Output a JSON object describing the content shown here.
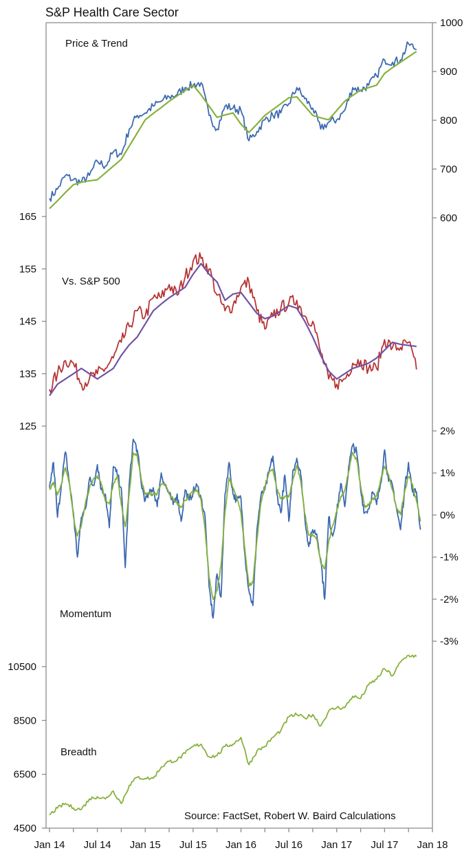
{
  "title": "S&P Health Care Sector",
  "source": "Source: FactSet, Robert W. Baird Calculations",
  "x_axis": {
    "ticks": [
      "Jan 14",
      "Jul 14",
      "Jan 15",
      "Jul 15",
      "Jan 16",
      "Jul 16",
      "Jan 17",
      "Jul 17",
      "Jan 18"
    ]
  },
  "chart_data": [
    {
      "type": "line",
      "label": "Price & Trend",
      "y_axis_side": "right",
      "ylim": [
        600,
        1000
      ],
      "yticks": [
        "1000",
        "900",
        "800",
        "700",
        "600"
      ],
      "ytick_values": [
        1000,
        900,
        800,
        700,
        600
      ],
      "x_start": "2014-01",
      "x_step": "1 month",
      "series": [
        {
          "color": "#3b69b1",
          "values": [
            640,
            659,
            687,
            678,
            673,
            687,
            716,
            706,
            735,
            730,
            782,
            810,
            815,
            829,
            839,
            848,
            853,
            867,
            872,
            877,
            810,
            782,
            829,
            825,
            820,
            758,
            777,
            801,
            810,
            815,
            834,
            867,
            844,
            825,
            782,
            796,
            801,
            820,
            867,
            862,
            872,
            891,
            924,
            919,
            924,
            957,
            945
          ]
        },
        {
          "color": "#87b13c",
          "values": [
            619,
            635,
            652,
            668,
            673,
            676,
            678,
            692,
            706,
            720,
            747,
            774,
            801,
            814,
            826,
            839,
            850,
            861,
            872,
            852,
            829,
            806,
            811,
            815,
            792,
            775,
            792,
            810,
            822,
            834,
            846,
            848,
            829,
            810,
            805,
            801,
            820,
            839,
            851,
            862,
            867,
            872,
            896,
            908,
            919,
            930,
            941
          ]
        }
      ]
    },
    {
      "type": "line",
      "label": "Vs. S&P 500",
      "y_axis_side": "left",
      "ylim": [
        125,
        165
      ],
      "yticks": [
        "165",
        "155",
        "145",
        "135",
        "125"
      ],
      "ytick_values": [
        165,
        155,
        145,
        135,
        125
      ],
      "x_start": "2014-01",
      "x_step": "1 month",
      "series": [
        {
          "color": "#b73333",
          "values": [
            132,
            135,
            137.5,
            137,
            133,
            134,
            135,
            136,
            138,
            141,
            144,
            147,
            146,
            149.5,
            149.5,
            152,
            150,
            153.5,
            156.5,
            157,
            155,
            150,
            147,
            148,
            151.5,
            152.5,
            147,
            143.5,
            146,
            147.5,
            148.5,
            149,
            146,
            145,
            139,
            134,
            133,
            134,
            137,
            137.5,
            136,
            136,
            141.5,
            140,
            140,
            141,
            135.8
          ]
        },
        {
          "color": "#7152a3",
          "values": [
            130.8,
            133,
            134,
            135,
            136,
            135,
            134,
            135,
            136,
            138.5,
            140.5,
            142,
            144.5,
            147,
            148.3,
            149.5,
            150.5,
            151.5,
            154,
            156,
            154,
            152.5,
            149,
            150.2,
            150.5,
            148.5,
            146.5,
            145.5,
            146,
            147,
            148,
            147.5,
            145,
            142,
            138.5,
            135.5,
            134,
            135,
            136,
            136.5,
            137,
            138,
            139.5,
            141,
            140.6,
            140.4,
            140.2
          ]
        }
      ]
    },
    {
      "type": "line",
      "label": "Momentum",
      "y_axis_side": "right",
      "ylim": [
        -3,
        2
      ],
      "yticks": [
        "2%",
        "1%",
        "0%",
        "-1%",
        "-2%",
        "-3%"
      ],
      "ytick_values": [
        2,
        1,
        0,
        -1,
        -2,
        -3
      ],
      "x_start": "2014-01",
      "x_step": "half month",
      "series": [
        {
          "color": "#3b69b1",
          "values": [
            0.65,
            1.25,
            -0.05,
            0.75,
            1.5,
            0.75,
            0.05,
            -1.0,
            -0.05,
            0.15,
            0.85,
            0.7,
            1.2,
            0.6,
            0.5,
            -0.3,
            1.15,
            0.95,
            0.65,
            -1.25,
            0.75,
            1.8,
            1.55,
            0.75,
            0.35,
            0.5,
            0.65,
            0.2,
            1.0,
            0.7,
            0.5,
            0.25,
            0.5,
            -0.15,
            0.6,
            0.35,
            0.55,
            0.7,
            0.4,
            -0.05,
            -1.7,
            -2.45,
            -1.4,
            -1.95,
            0.5,
            1.25,
            0.5,
            0.35,
            0.4,
            -0.95,
            -1.8,
            -2.15,
            -0.35,
            0.45,
            0.6,
            1.0,
            1.4,
            0.5,
            0.05,
            0.95,
            -0.15,
            1.05,
            1.35,
            0.95,
            -0.05,
            -0.75,
            -0.35,
            -0.45,
            -1.05,
            -2.0,
            -0.05,
            -0.5,
            0.05,
            0.75,
            0.2,
            1.15,
            1.65,
            1.5,
            0.6,
            0.05,
            0.15,
            0.55,
            0.25,
            0.75,
            1.55,
            0.8,
            0.7,
            0.15,
            -0.35,
            0.6,
            1.25,
            0.55,
            0.55,
            -0.35
          ]
        },
        {
          "color": "#87b13c",
          "values": [
            0.6,
            0.78,
            0.48,
            0.74,
            1.13,
            0.76,
            -0.04,
            -0.5,
            -0.24,
            0.28,
            0.64,
            0.86,
            0.93,
            0.73,
            0.33,
            0.26,
            0.74,
            0.93,
            0.25,
            -0.28,
            0.51,
            1.48,
            1.41,
            0.85,
            0.49,
            0.5,
            0.5,
            0.51,
            0.73,
            0.73,
            0.49,
            0.38,
            0.28,
            0.2,
            0.35,
            0.46,
            0.54,
            0.59,
            0.36,
            -0.35,
            -1.48,
            -2.0,
            -1.8,
            -1.2,
            0.08,
            0.88,
            0.65,
            0.4,
            0.05,
            -0.83,
            -1.68,
            -1.61,
            -0.6,
            0.29,
            0.66,
            1.0,
            1.08,
            0.61,
            0.39,
            0.45,
            0.43,
            0.83,
            1.18,
            0.8,
            0.03,
            -0.48,
            -0.48,
            -0.58,
            -1.14,
            -1.28,
            -0.65,
            -0.25,
            0.09,
            0.44,
            0.58,
            1.04,
            1.49,
            1.31,
            0.69,
            0.21,
            0.23,
            0.38,
            0.45,
            0.83,
            1.16,
            0.96,
            0.59,
            0.16,
            0.01,
            0.53,
            0.91,
            0.73,
            0.33,
            -0.15
          ]
        }
      ]
    },
    {
      "type": "line",
      "label": "Breadth",
      "y_axis_side": "left",
      "ylim": [
        4500,
        11500
      ],
      "yticks": [
        "10500",
        "8500",
        "6500",
        "4500"
      ],
      "ytick_values": [
        10500,
        8500,
        6500,
        4500
      ],
      "x_start": "2014-01",
      "x_step": "1 month",
      "series": [
        {
          "color": "#87b13c",
          "values": [
            4990,
            5245,
            5415,
            5245,
            5200,
            5585,
            5670,
            5585,
            5880,
            5415,
            6090,
            6390,
            6350,
            6350,
            6770,
            6980,
            7025,
            7280,
            7535,
            7620,
            7150,
            7195,
            7535,
            7620,
            7870,
            6855,
            7365,
            7535,
            7870,
            8130,
            8635,
            8720,
            8590,
            8720,
            8295,
            8850,
            8975,
            8975,
            9400,
            9315,
            9820,
            10035,
            10420,
            10160,
            10670,
            10925,
            10880
          ]
        }
      ]
    }
  ]
}
